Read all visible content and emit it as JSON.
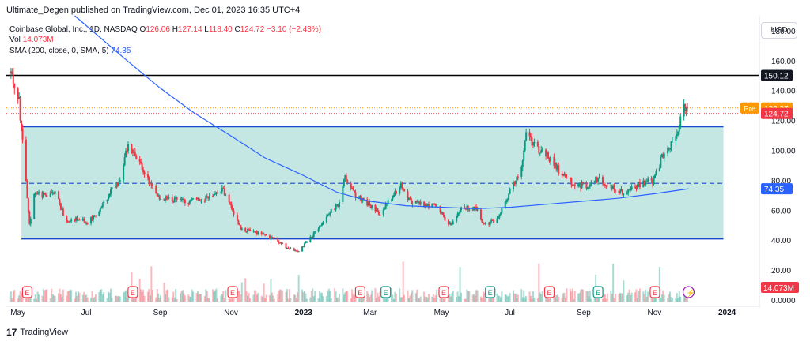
{
  "header": {
    "publisher": "Ultimate_Degen published on TradingView.com, Dec 01, 2023 16:35 UTC+4",
    "currency": "USD"
  },
  "legend": {
    "symbol": "Coinbase Global, Inc., 1D, NASDAQ",
    "o_label": "O",
    "o_val": "126.06",
    "h_label": "H",
    "h_val": "127.14",
    "l_label": "L",
    "l_val": "118.40",
    "c_label": "C",
    "c_val": "124.72",
    "change": "−3.10 (−2.43%)",
    "vol_label": "Vol",
    "vol_val": "14.073M",
    "sma_label": "SMA (200, close, 0, SMA, 5)",
    "sma_val": "74.35"
  },
  "price_scale": {
    "badge_150": "150.12",
    "badge_pre_label": "Pre",
    "badge_pre": "128.37",
    "badge_last": "124.72",
    "badge_sma": "74.35",
    "badge_vol": "14.073M"
  },
  "footer": {
    "logo_text": "TradingView"
  },
  "colors": {
    "up": "#089981",
    "down": "#f23645",
    "sma": "#2962ff",
    "channel_fill": "#b2dfdb",
    "channel_line": "#1848cc",
    "resistance": "#000000",
    "pre": "#ff9800"
  },
  "chart_data": {
    "type": "candlestick",
    "title": "Coinbase Global, Inc., 1D, NASDAQ",
    "ylim": [
      0,
      190
    ],
    "y_ticks": [
      "180.00",
      "160.00",
      "140.00",
      "120.00",
      "100.00",
      "80.00",
      "60.00",
      "40.00",
      "20.00",
      "0.0000"
    ],
    "x_ticks": [
      "May",
      "Jul",
      "Sep",
      "Nov",
      "2023",
      "Mar",
      "May",
      "Jul",
      "Sep",
      "Nov",
      "2024"
    ],
    "price_path": [
      [
        "2022-04-26",
        152
      ],
      [
        "2022-05-03",
        132
      ],
      [
        "2022-05-09",
        80
      ],
      [
        "2022-05-12",
        50
      ],
      [
        "2022-05-16",
        72
      ],
      [
        "2022-05-25",
        70
      ],
      [
        "2022-06-03",
        72
      ],
      [
        "2022-06-13",
        52
      ],
      [
        "2022-06-22",
        55
      ],
      [
        "2022-07-01",
        52
      ],
      [
        "2022-07-12",
        60
      ],
      [
        "2022-07-20",
        72
      ],
      [
        "2022-07-28",
        78
      ],
      [
        "2022-08-05",
        105
      ],
      [
        "2022-08-12",
        95
      ],
      [
        "2022-08-22",
        80
      ],
      [
        "2022-09-01",
        68
      ],
      [
        "2022-09-15",
        67
      ],
      [
        "2022-09-28",
        66
      ],
      [
        "2022-10-10",
        68
      ],
      [
        "2022-10-25",
        75
      ],
      [
        "2022-11-03",
        60
      ],
      [
        "2022-11-10",
        48
      ],
      [
        "2022-11-22",
        45
      ],
      [
        "2022-12-05",
        42
      ],
      [
        "2022-12-20",
        35
      ],
      [
        "2022-12-30",
        33
      ],
      [
        "2023-01-10",
        42
      ],
      [
        "2023-01-18",
        50
      ],
      [
        "2023-01-25",
        58
      ],
      [
        "2023-02-02",
        64
      ],
      [
        "2023-02-08",
        82
      ],
      [
        "2023-02-17",
        70
      ],
      [
        "2023-03-01",
        64
      ],
      [
        "2023-03-10",
        58
      ],
      [
        "2023-03-20",
        68
      ],
      [
        "2023-03-28",
        78
      ],
      [
        "2023-04-05",
        66
      ],
      [
        "2023-04-15",
        64
      ],
      [
        "2023-04-26",
        63
      ],
      [
        "2023-05-10",
        50
      ],
      [
        "2023-05-20",
        62
      ],
      [
        "2023-06-01",
        61
      ],
      [
        "2023-06-08",
        50
      ],
      [
        "2023-06-20",
        55
      ],
      [
        "2023-06-27",
        66
      ],
      [
        "2023-07-03",
        78
      ],
      [
        "2023-07-10",
        90
      ],
      [
        "2023-07-14",
        110
      ],
      [
        "2023-07-20",
        104
      ],
      [
        "2023-08-01",
        96
      ],
      [
        "2023-08-14",
        84
      ],
      [
        "2023-08-24",
        78
      ],
      [
        "2023-09-05",
        76
      ],
      [
        "2023-09-14",
        82
      ],
      [
        "2023-09-25",
        75
      ],
      [
        "2023-10-05",
        72
      ],
      [
        "2023-10-16",
        76
      ],
      [
        "2023-10-24",
        78
      ],
      [
        "2023-11-01",
        80
      ],
      [
        "2023-11-08",
        95
      ],
      [
        "2023-11-15",
        104
      ],
      [
        "2023-11-22",
        115
      ],
      [
        "2023-11-28",
        130
      ],
      [
        "2023-12-01",
        124.72
      ]
    ],
    "sma200_path": [
      [
        "2022-06-20",
        190
      ],
      [
        "2022-08-01",
        162
      ],
      [
        "2022-09-01",
        142
      ],
      [
        "2022-10-01",
        125
      ],
      [
        "2022-11-01",
        110
      ],
      [
        "2022-12-01",
        95
      ],
      [
        "2023-01-01",
        84
      ],
      [
        "2023-02-01",
        72
      ],
      [
        "2023-03-01",
        66
      ],
      [
        "2023-04-01",
        63
      ],
      [
        "2023-05-01",
        62
      ],
      [
        "2023-06-01",
        61
      ],
      [
        "2023-07-01",
        62
      ],
      [
        "2023-08-01",
        64
      ],
      [
        "2023-09-01",
        66
      ],
      [
        "2023-10-01",
        68
      ],
      [
        "2023-11-01",
        71
      ],
      [
        "2023-12-01",
        74.35
      ]
    ],
    "channel": {
      "start": "2022-05-05",
      "end": "2023-12-31",
      "upper": 116,
      "lower": 41,
      "mid": 78
    },
    "horizontal_lines": [
      150.12,
      128.37,
      124.72
    ],
    "event_markers": [
      {
        "date": "2022-05-10",
        "type": "E"
      },
      {
        "date": "2022-08-09",
        "type": "E"
      },
      {
        "date": "2022-11-03",
        "type": "E"
      },
      {
        "date": "2023-02-21",
        "type": "E"
      },
      {
        "date": "2023-05-04",
        "type": "E"
      },
      {
        "date": "2023-08-03",
        "type": "E"
      },
      {
        "date": "2023-11-02",
        "type": "E"
      },
      {
        "date": "2023-03-15",
        "type": "D"
      },
      {
        "date": "2023-06-13",
        "type": "D"
      },
      {
        "date": "2023-09-14",
        "type": "D"
      },
      {
        "date": "2023-12-01",
        "type": "S"
      }
    ]
  }
}
